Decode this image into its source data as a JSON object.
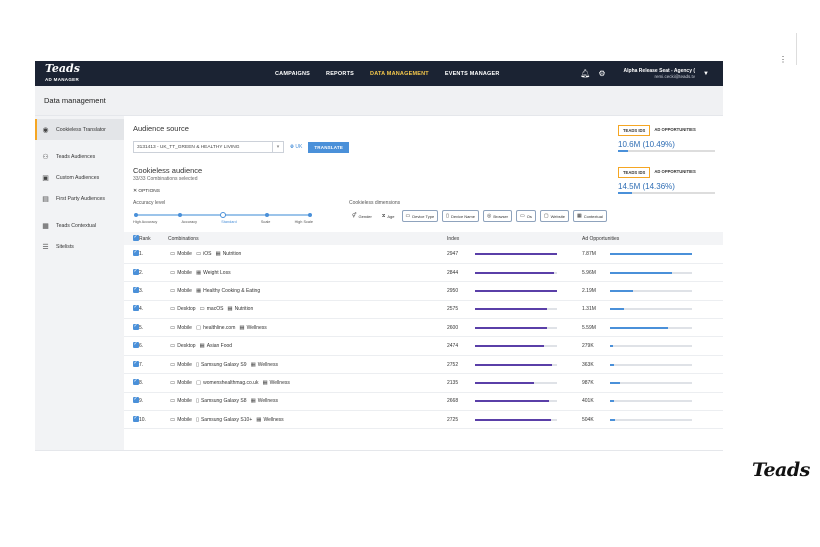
{
  "app": {
    "logo": "Teads",
    "logo_sub": "AD MANAGER",
    "nav": [
      {
        "label": "CAMPAIGNS",
        "active": false
      },
      {
        "label": "REPORTS",
        "active": false
      },
      {
        "label": "DATA MANAGEMENT",
        "active": true
      },
      {
        "label": "EVENTS MANAGER",
        "active": false
      }
    ],
    "account_name": "Alpha Release Seat - Agency (",
    "account_email": "remi.cecki@teads.tv",
    "icons": {
      "bell": "bell-icon",
      "settings": "gear-icon"
    }
  },
  "page_title": "Data management",
  "sidebar": [
    {
      "label": "Cookieless Translator",
      "icon": "brain-icon",
      "active": true
    },
    {
      "label": "Teads Audiences",
      "icon": "people-icon",
      "active": false
    },
    {
      "label": "Custom Audiences",
      "icon": "id-card-icon",
      "active": false
    },
    {
      "label": "First Party Audiences",
      "icon": "contact-card-icon",
      "active": false
    },
    {
      "label": "Teads Contextual",
      "icon": "contextual-icon",
      "active": false
    },
    {
      "label": "Sitelists",
      "icon": "list-icon",
      "active": false
    }
  ],
  "audience_source": {
    "title": "Audience source",
    "selected": "3131413 - UK_TT_GREEN & HEALTHY LIVING",
    "region": "UK",
    "translate_label": "TRANSLATE",
    "tabs": [
      "TEADS IDS",
      "AD OPPORTUNITIES"
    ],
    "value": "10.6M (10.49%)",
    "fill_fraction": 0.1049
  },
  "cookieless_audience": {
    "title": "Cookieless audience",
    "subtitle": "33/33 Combinations selected",
    "options_label": "OPTIONS",
    "tabs": [
      "TEADS IDS",
      "AD OPPORTUNITIES"
    ],
    "value": "14.5M (14.36%)",
    "fill_fraction": 0.1436,
    "accuracy_label": "Accuracy level",
    "accuracy_steps": [
      "High Accuracy",
      "Accuracy",
      "Standard",
      "Scale",
      "High Scale"
    ],
    "accuracy_selected_index": 2,
    "dimensions_label": "Cookieless dimensions",
    "dimensions": [
      {
        "label": "Gender",
        "icon": "gender-icon",
        "boxed": false
      },
      {
        "label": "Age",
        "icon": "age-icon",
        "boxed": false
      },
      {
        "label": "Device Type",
        "icon": "device-icon",
        "boxed": true
      },
      {
        "label": "Device Name",
        "icon": "phone-icon",
        "boxed": true
      },
      {
        "label": "Browser",
        "icon": "browser-icon",
        "boxed": true
      },
      {
        "label": "Os",
        "icon": "os-icon",
        "boxed": true
      },
      {
        "label": "Website",
        "icon": "website-icon",
        "boxed": true
      },
      {
        "label": "Contextual",
        "icon": "contextual-icon",
        "boxed": true
      }
    ]
  },
  "table": {
    "headers": [
      "Rank",
      "Combinations",
      "Index",
      "Ad Opportunities"
    ],
    "rows": [
      {
        "rank": "1.",
        "combo": [
          [
            "device-icon",
            "Mobile"
          ],
          [
            "os-icon",
            "iOS"
          ],
          [
            "contextual-icon",
            "Nutrition"
          ]
        ],
        "index": "2947",
        "index_frac": 1.0,
        "ops": "7.87M",
        "ops_frac": 1.0
      },
      {
        "rank": "2.",
        "combo": [
          [
            "device-icon",
            "Mobile"
          ],
          [
            "contextual-icon",
            "Weight Loss"
          ]
        ],
        "index": "2844",
        "index_frac": 0.965,
        "ops": "5.96M",
        "ops_frac": 0.757
      },
      {
        "rank": "3.",
        "combo": [
          [
            "device-icon",
            "Mobile"
          ],
          [
            "contextual-icon",
            "Healthy Cooking & Eating"
          ]
        ],
        "index": "2950",
        "index_frac": 1.0,
        "ops": "2.19M",
        "ops_frac": 0.278
      },
      {
        "rank": "4.",
        "combo": [
          [
            "device-icon",
            "Desktop"
          ],
          [
            "os-icon",
            "macOS"
          ],
          [
            "contextual-icon",
            "Nutrition"
          ]
        ],
        "index": "2575",
        "index_frac": 0.873,
        "ops": "1.31M",
        "ops_frac": 0.166
      },
      {
        "rank": "5.",
        "combo": [
          [
            "device-icon",
            "Mobile"
          ],
          [
            "website-icon",
            "healthline.com"
          ],
          [
            "contextual-icon",
            "Wellness"
          ]
        ],
        "index": "2600",
        "index_frac": 0.881,
        "ops": "5.59M",
        "ops_frac": 0.71
      },
      {
        "rank": "6.",
        "combo": [
          [
            "device-icon",
            "Desktop"
          ],
          [
            "contextual-icon",
            "Asian Food"
          ]
        ],
        "index": "2474",
        "index_frac": 0.839,
        "ops": "279K",
        "ops_frac": 0.035
      },
      {
        "rank": "7.",
        "combo": [
          [
            "device-icon",
            "Mobile"
          ],
          [
            "phone-icon",
            "Samsung Galaxy S9"
          ],
          [
            "contextual-icon",
            "Wellness"
          ]
        ],
        "index": "2752",
        "index_frac": 0.933,
        "ops": "363K",
        "ops_frac": 0.046
      },
      {
        "rank": "8.",
        "combo": [
          [
            "device-icon",
            "Mobile"
          ],
          [
            "website-icon",
            "womenshealthmag.co.uk"
          ],
          [
            "contextual-icon",
            "Wellness"
          ]
        ],
        "index": "2135",
        "index_frac": 0.724,
        "ops": "987K",
        "ops_frac": 0.125
      },
      {
        "rank": "9.",
        "combo": [
          [
            "device-icon",
            "Mobile"
          ],
          [
            "phone-icon",
            "Samsung Galaxy S8"
          ],
          [
            "contextual-icon",
            "Wellness"
          ]
        ],
        "index": "2668",
        "index_frac": 0.905,
        "ops": "401K",
        "ops_frac": 0.051
      },
      {
        "rank": "10.",
        "combo": [
          [
            "device-icon",
            "Mobile"
          ],
          [
            "phone-icon",
            "Samsung Galaxy S10+"
          ],
          [
            "contextual-icon",
            "Wellness"
          ]
        ],
        "index": "2725",
        "index_frac": 0.924,
        "ops": "504K",
        "ops_frac": 0.064
      }
    ]
  },
  "brand_mark": "Teads",
  "colors": {
    "accent": "#f5a623",
    "nav_active": "#f5c84b",
    "primary": "#4a90d9",
    "index_bar": "#5a3fa8",
    "topbar": "#1b2333"
  }
}
